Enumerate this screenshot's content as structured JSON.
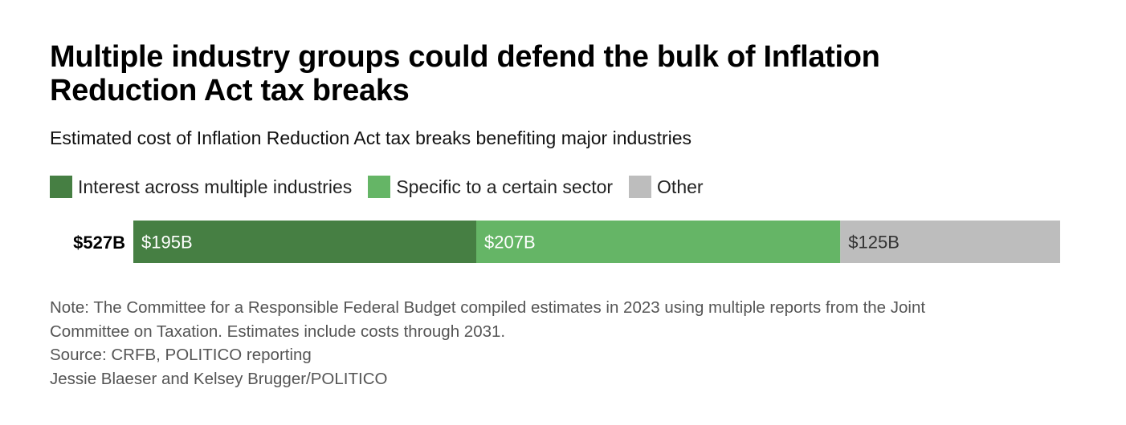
{
  "title": "Multiple industry groups could defend the bulk of Inflation Reduction Act tax breaks",
  "subtitle": "Estimated cost of Inflation Reduction Act tax breaks benefiting major industries",
  "legend": [
    {
      "label": "Interest across multiple industries",
      "color": "#467f43"
    },
    {
      "label": "Specific to a certain sector",
      "color": "#65b566"
    },
    {
      "label": "Other",
      "color": "#bdbdbd"
    }
  ],
  "chart_data": {
    "type": "bar",
    "orientation": "horizontal",
    "stacked": true,
    "categories": [
      "$527B"
    ],
    "series": [
      {
        "name": "Interest across multiple industries",
        "values": [
          195
        ],
        "label": "$195B",
        "color": "#467f43",
        "label_color": "#ffffff"
      },
      {
        "name": "Specific to a certain sector",
        "values": [
          207
        ],
        "label": "$207B",
        "color": "#65b566",
        "label_color": "#ffffff"
      },
      {
        "name": "Other",
        "values": [
          125
        ],
        "label": "$125B",
        "color": "#bdbdbd",
        "label_color": "#333333"
      }
    ],
    "total": 527,
    "units": "billions of dollars",
    "xlim": [
      0,
      527
    ],
    "grid": false,
    "legend_position": "top-left"
  },
  "notes": {
    "note_line1": "Note: The Committee for a Responsible Federal Budget compiled estimates in 2023 using multiple reports from the Joint",
    "note_line2": "Committee on Taxation. Estimates include costs through 2031.",
    "source": "Source: CRFB, POLITICO reporting",
    "credit": "Jessie Blaeser and Kelsey Brugger/POLITICO"
  }
}
